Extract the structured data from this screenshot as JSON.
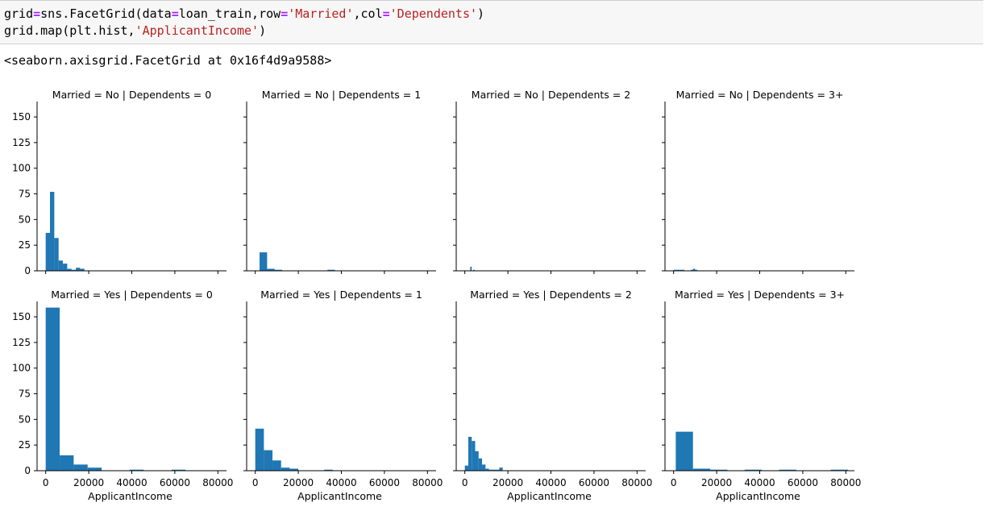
{
  "code_cell": {
    "line1": [
      {
        "t": "grid",
        "k": "plain"
      },
      {
        "t": "=",
        "k": "op"
      },
      {
        "t": "sns.FacetGrid(data",
        "k": "plain"
      },
      {
        "t": "=",
        "k": "op"
      },
      {
        "t": "loan_train,row",
        "k": "plain"
      },
      {
        "t": "=",
        "k": "op"
      },
      {
        "t": "'Married'",
        "k": "str"
      },
      {
        "t": ",col",
        "k": "plain"
      },
      {
        "t": "=",
        "k": "op"
      },
      {
        "t": "'Dependents'",
        "k": "str"
      },
      {
        "t": ")",
        "k": "plain"
      }
    ],
    "line2": [
      {
        "t": "grid.map(plt.hist,",
        "k": "plain"
      },
      {
        "t": "'ApplicantIncome'",
        "k": "str"
      },
      {
        "t": ")",
        "k": "plain"
      }
    ]
  },
  "output_text": "<seaborn.axisgrid.FacetGrid at 0x16f4d9a9588>",
  "colors": {
    "bar": "#1f77b4",
    "axis": "#000000",
    "op": "#aa22ff",
    "string": "#ba2121"
  },
  "chart_data": {
    "type": "bar",
    "xlabel": "ApplicantIncome",
    "xlim": [
      -4000,
      84000
    ],
    "ylim": [
      0,
      165
    ],
    "xticks": [
      0,
      20000,
      40000,
      60000,
      80000
    ],
    "yticks": [
      0,
      25,
      50,
      75,
      100,
      125,
      150
    ],
    "panels": [
      {
        "title": "Married = No | Dependents = 0",
        "bin_start": 0,
        "bin_width": 2000,
        "values": [
          37,
          77,
          32,
          10,
          7,
          2,
          1,
          3,
          2,
          0,
          0,
          0,
          0,
          0,
          0,
          0,
          0,
          0,
          0,
          0
        ]
      },
      {
        "title": "Married = No | Dependents = 1",
        "bin_start": 2000,
        "bin_width": 3500,
        "values": [
          18,
          2,
          1,
          0,
          0,
          0,
          0,
          0,
          0,
          1,
          0,
          0,
          0,
          0,
          0,
          0,
          0,
          0,
          0,
          0
        ]
      },
      {
        "title": "Married = No | Dependents = 2",
        "bin_start": 2500,
        "bin_width": 700,
        "values": [
          4,
          0,
          1,
          0,
          0,
          0,
          0,
          0,
          0,
          0,
          0,
          0,
          0,
          0,
          0,
          0,
          0,
          0,
          0,
          0
        ]
      },
      {
        "title": "Married = No | Dependents = 3+",
        "bin_start": 0,
        "bin_width": 1000,
        "values": [
          1,
          1,
          1,
          1,
          1,
          0,
          0,
          0,
          1,
          2,
          1,
          0,
          0,
          0,
          0,
          0,
          0,
          0,
          0,
          0
        ]
      },
      {
        "title": "Married = Yes | Dependents = 0",
        "bin_start": 0,
        "bin_width": 6500,
        "values": [
          159,
          15,
          6,
          3,
          0,
          0,
          1,
          0,
          0,
          1,
          0,
          0,
          0,
          0,
          0,
          0,
          0,
          0,
          0,
          0
        ]
      },
      {
        "title": "Married = Yes | Dependents = 1",
        "bin_start": 0,
        "bin_width": 4000,
        "values": [
          41,
          20,
          10,
          3,
          2,
          0,
          0,
          0,
          1,
          0,
          0,
          0,
          0,
          0,
          0,
          0,
          0,
          0,
          0,
          0
        ]
      },
      {
        "title": "Married = Yes | Dependents = 2",
        "bin_start": 0,
        "bin_width": 1600,
        "values": [
          5,
          33,
          29,
          19,
          12,
          6,
          2,
          1,
          1,
          1,
          3,
          0,
          0,
          0,
          0,
          0,
          0,
          0,
          0,
          0
        ]
      },
      {
        "title": "Married = Yes | Dependents = 3+",
        "bin_start": 1000,
        "bin_width": 8000,
        "values": [
          38,
          2,
          1,
          0,
          1,
          0,
          1,
          0,
          0,
          1,
          0,
          0,
          0,
          0,
          0,
          0,
          0,
          0,
          0,
          0
        ]
      }
    ]
  }
}
